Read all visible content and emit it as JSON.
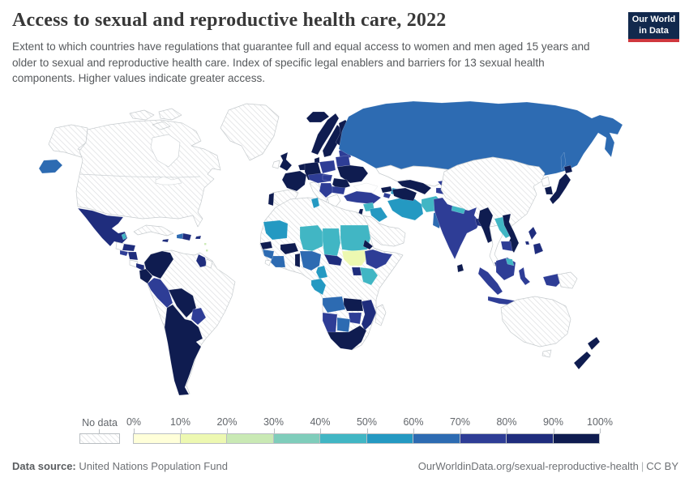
{
  "header": {
    "title": "Access to sexual and reproductive health care, 2022",
    "subtitle": "Extent to which countries have regulations that guarantee full and equal access to women and men aged 15 years and older to sexual and reproductive health care. Index of specific legal enablers and barriers for 13 sexual health components. Higher values indicate greater access.",
    "logo": {
      "line1": "Our World",
      "line2": "in Data",
      "bg": "#12294d",
      "accent": "#d0383e"
    }
  },
  "legend": {
    "no_data_label": "No data",
    "tick_labels": [
      "0%",
      "10%",
      "20%",
      "30%",
      "40%",
      "50%",
      "60%",
      "70%",
      "80%",
      "90%",
      "100%"
    ],
    "colors": [
      "#ffffd9",
      "#edf8b1",
      "#c9e9b4",
      "#7fcdbb",
      "#41b6c4",
      "#2499c2",
      "#2d6bb2",
      "#2e3d96",
      "#1f2d7d",
      "#0f1c50"
    ]
  },
  "footer": {
    "source_label": "Data source:",
    "source_value": "United Nations Population Fund",
    "url": "OurWorldinData.org/sexual-reproductive-health",
    "separator": "|",
    "license": "CC BY"
  },
  "chart_data": {
    "type": "choropleth",
    "title": "Access to sexual and reproductive health care, 2022",
    "year": 2022,
    "unit": "%",
    "scale_min": 0,
    "scale_max": 100,
    "bins": [
      {
        "range": "0-10%",
        "key": "b1",
        "color": "#ffffd9"
      },
      {
        "range": "10-20%",
        "key": "b2",
        "color": "#edf8b1"
      },
      {
        "range": "20-30%",
        "key": "b3",
        "color": "#c9e9b4"
      },
      {
        "range": "30-40%",
        "key": "b4",
        "color": "#7fcdbb"
      },
      {
        "range": "40-50%",
        "key": "b5",
        "color": "#41b6c4"
      },
      {
        "range": "50-60%",
        "key": "b6",
        "color": "#2499c2"
      },
      {
        "range": "60-70%",
        "key": "b7",
        "color": "#2d6bb2"
      },
      {
        "range": "70-80%",
        "key": "b8",
        "color": "#2e3d96"
      },
      {
        "range": "80-90%",
        "key": "b9",
        "color": "#1f2d7d"
      },
      {
        "range": "90-100%",
        "key": "b10",
        "color": "#0f1c50"
      }
    ],
    "no_data": {
      "label": "No data",
      "pattern": "diagonal-hatch"
    },
    "palette": {
      "b1": "#ffffd9",
      "b2": "#edf8b1",
      "b3": "#c9e9b4",
      "b4": "#7fcdbb",
      "b5": "#41b6c4",
      "b6": "#2499c2",
      "b7": "#2d6bb2",
      "b8": "#2e3d96",
      "b9": "#1f2d7d",
      "b10": "#0f1c50",
      "white": "#ffffff",
      "hatch": "hatch"
    },
    "regions": {
      "chukotka": "b7",
      "alaska": "hatch",
      "canada-usa": "hatch",
      "arctic-islands-a": "hatch",
      "arctic-islands-b": "hatch",
      "arctic-islands-c": "hatch",
      "greenland": "hatch",
      "mexico": "b9",
      "belize": "b5",
      "guatemala": "white",
      "honduras": "b9",
      "el-salvador": "b8",
      "nicaragua": "b9",
      "costa-rica": "white",
      "panama": "b9",
      "cuba": "hatch",
      "haiti": "b7",
      "dominican-republic": "b9",
      "jamaica": "b9",
      "puerto-rico": "b9",
      "lesser-antilles": "b3",
      "south-america-base": "hatch",
      "colombia": "b10",
      "guyana": "b9",
      "suriname": "white",
      "ecuador": "b10",
      "peru": "b8",
      "bolivia": "b10",
      "paraguay": "b8",
      "chile-argentina-uruguay": "b10",
      "iceland": "b10",
      "uk": "b10",
      "ireland": "white",
      "norway": "b10",
      "sweden": "b10",
      "finland": "b10",
      "baltics": "b8",
      "denmark": "b10",
      "benelux": "b10",
      "germany": "b10",
      "france": "b10",
      "spain": "hatch",
      "portugal": "b10",
      "italy": "hatch",
      "central-europe": "b8",
      "poland": "b8",
      "belarus": "b8",
      "ukraine": "b10",
      "romania": "b10",
      "hungary": "b8",
      "balkans": "b8",
      "bulgaria": "b8",
      "greece": "white",
      "russia": "b7",
      "sakhalin": "b7",
      "kazakhstan": "white",
      "turkey": "b8",
      "georgia": "b10",
      "azerbaijan": "b6",
      "armenia": "b8",
      "syria": "b5",
      "iraq": "b6",
      "israel": "b10",
      "saudi-peninsula": "hatch",
      "iran": "b6",
      "afghanistan": "b5",
      "pakistan": "b7",
      "turkmenistan": "b10",
      "uzbekistan": "b10",
      "kyrgyzstan": "b8",
      "tajikistan": "b8",
      "china-mongolia": "hatch",
      "north-korea": "white",
      "south-korea": "b10",
      "japan": "b10",
      "india": "b8",
      "nepal": "b5",
      "bangladesh": "b9",
      "sri-lanka": "b10",
      "myanmar": "b10",
      "thailand": "white",
      "laos": "b5",
      "vietnam": "b10",
      "cambodia": "b8",
      "malaysia": "b9",
      "sumatra": "b8",
      "java": "b8",
      "borneo": "b8",
      "borneo-north": "b5",
      "sulawesi": "b8",
      "west-papua": "b8",
      "png": "hatch",
      "philippines": "b9",
      "australia": "hatch",
      "tasmania": "hatch",
      "new-zealand": "b10",
      "africa-base": "hatch",
      "tunisia": "b6",
      "mauritania": "b6",
      "niger": "b5",
      "chad": "b5",
      "sudan": "b5",
      "south-sudan": "b2",
      "eritrea": "b10",
      "ethiopia": "b8",
      "kenya": "b5",
      "uganda": "b9",
      "car": "b9",
      "nigeria": "b7",
      "benin-togo": "b10",
      "burkina-faso": "b10",
      "ivory-coast": "b7",
      "guinea": "b7",
      "senegal": "b10",
      "sierra-leone": "white",
      "cameroon": "b6",
      "congo-gabon": "b6",
      "angola": "b7",
      "zambia": "b10",
      "mozambique": "b9",
      "zimbabwe": "b8",
      "botswana": "b7",
      "namibia": "b8",
      "south-africa": "b10",
      "madagascar": "hatch"
    }
  }
}
